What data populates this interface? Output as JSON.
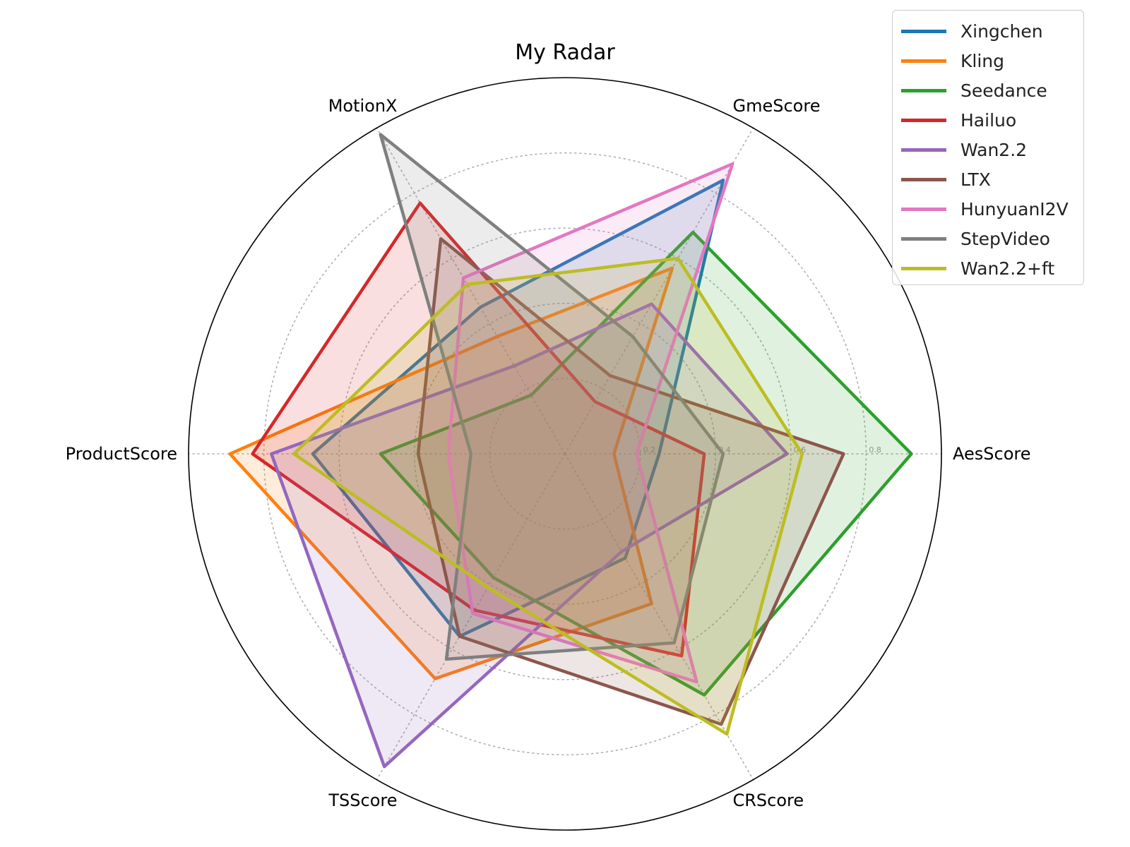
{
  "chart_data": {
    "type": "radar",
    "title": "My Radar",
    "axes": [
      "AesScore",
      "GmeScore",
      "MotionX",
      "ProductScore",
      "TSScore",
      "CRScore"
    ],
    "rlim": [
      0,
      1
    ],
    "r_ticks": [
      0.2,
      0.4,
      0.6,
      0.8
    ],
    "r_tick_labels": [
      "0.2",
      "0.4",
      "0.6",
      "0.8"
    ],
    "grid": true,
    "legend_position": "top-right",
    "series": [
      {
        "name": "Xingchen",
        "color": "#1f77b4",
        "values": [
          0.25,
          0.84,
          0.45,
          0.67,
          0.56,
          0.32
        ]
      },
      {
        "name": "Kling",
        "color": "#ff7f0e",
        "values": [
          0.13,
          0.57,
          0.36,
          0.89,
          0.69,
          0.46
        ]
      },
      {
        "name": "Seedance",
        "color": "#2ca02c",
        "values": [
          0.92,
          0.68,
          0.18,
          0.49,
          0.38,
          0.74
        ]
      },
      {
        "name": "Hailuo",
        "color": "#d62728",
        "values": [
          0.37,
          0.16,
          0.77,
          0.83,
          0.48,
          0.62
        ]
      },
      {
        "name": "Wan2.2",
        "color": "#9467bd",
        "values": [
          0.59,
          0.46,
          0.27,
          0.78,
          0.96,
          0.3
        ]
      },
      {
        "name": "LTX",
        "color": "#8c564b",
        "values": [
          0.74,
          0.24,
          0.66,
          0.39,
          0.56,
          0.83
        ]
      },
      {
        "name": "HunyuanI2V",
        "color": "#e377c2",
        "values": [
          0.19,
          0.89,
          0.54,
          0.31,
          0.49,
          0.7
        ]
      },
      {
        "name": "StepVideo",
        "color": "#7f7f7f",
        "values": [
          0.42,
          0.36,
          0.98,
          0.25,
          0.63,
          0.58
        ]
      },
      {
        "name": "Wan2.2+ft",
        "color": "#bcbd22",
        "values": [
          0.63,
          0.6,
          0.52,
          0.72,
          0.41,
          0.86
        ]
      }
    ]
  }
}
